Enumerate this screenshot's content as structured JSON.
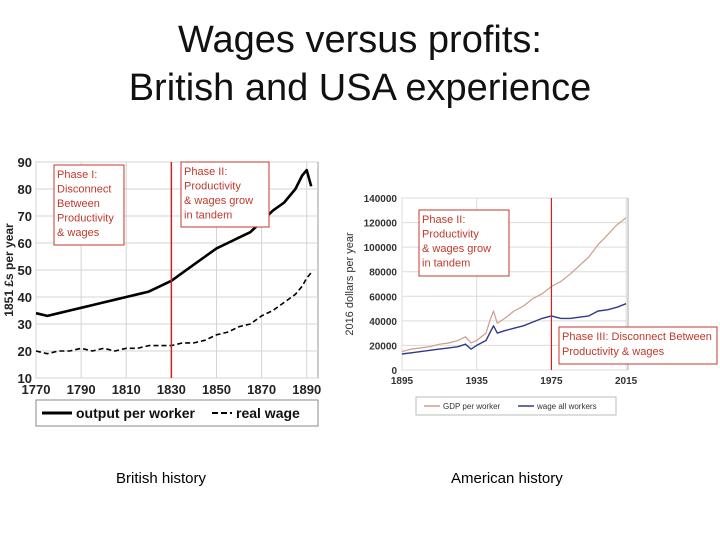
{
  "slide": {
    "title_line1": "Wages versus profits:",
    "title_line2": "British and USA experience",
    "caption_left": "British history",
    "caption_right": "American history"
  },
  "colors": {
    "phase_box": "#c0392b",
    "phase_text": "#c0392b",
    "phase_line": "#cc2222",
    "gdp_line": "#d19a8c",
    "wage_line": "#2e3a8a",
    "black": "#000000"
  },
  "chart_data": [
    {
      "type": "line",
      "title": "",
      "xlabel": "",
      "ylabel": "1851 £s per year",
      "xlim": [
        1770,
        1895
      ],
      "ylim": [
        10,
        90
      ],
      "x_ticks": [
        1770,
        1790,
        1810,
        1830,
        1850,
        1870,
        1890
      ],
      "y_ticks": [
        10,
        20,
        30,
        40,
        50,
        60,
        70,
        80,
        90
      ],
      "grid": true,
      "legend_position": "bottom",
      "series": [
        {
          "name": "output per worker",
          "style": "solid",
          "x": [
            1770,
            1775,
            1780,
            1785,
            1790,
            1795,
            1800,
            1805,
            1810,
            1815,
            1820,
            1825,
            1830,
            1835,
            1840,
            1845,
            1850,
            1855,
            1860,
            1865,
            1870,
            1875,
            1880,
            1885,
            1888,
            1890,
            1892
          ],
          "y": [
            34,
            33,
            34,
            35,
            36,
            37,
            38,
            39,
            40,
            41,
            42,
            44,
            46,
            49,
            52,
            55,
            58,
            60,
            62,
            64,
            68,
            72,
            75,
            80,
            85,
            87,
            81
          ]
        },
        {
          "name": "real wage",
          "style": "dashed",
          "x": [
            1770,
            1775,
            1780,
            1785,
            1790,
            1795,
            1800,
            1805,
            1810,
            1815,
            1820,
            1825,
            1830,
            1835,
            1840,
            1845,
            1850,
            1855,
            1860,
            1865,
            1870,
            1875,
            1880,
            1885,
            1888,
            1890,
            1892
          ],
          "y": [
            20,
            19,
            20,
            20,
            21,
            20,
            21,
            20,
            21,
            21,
            22,
            22,
            22,
            23,
            23,
            24,
            26,
            27,
            29,
            30,
            33,
            35,
            38,
            41,
            44,
            47,
            49
          ]
        }
      ],
      "phase_lines": [
        1830
      ],
      "annotations": [
        {
          "lines": [
            "Phase I:",
            "Disconnect",
            "Between",
            "Productivity",
            "& wages"
          ]
        },
        {
          "lines": [
            "Phase II:",
            "Productivity",
            "& wages grow",
            "in tandem"
          ]
        }
      ]
    },
    {
      "type": "line",
      "title": "",
      "xlabel": "",
      "ylabel": "2016 dollars per year",
      "xlim": [
        1895,
        2016
      ],
      "ylim": [
        0,
        140000
      ],
      "x_ticks": [
        1895,
        1935,
        1975,
        2015
      ],
      "y_ticks": [
        0,
        20000,
        40000,
        60000,
        80000,
        100000,
        120000,
        140000
      ],
      "grid": true,
      "legend_position": "bottom",
      "series": [
        {
          "name": "GDP per worker",
          "x": [
            1895,
            1900,
            1905,
            1910,
            1915,
            1920,
            1925,
            1929,
            1932,
            1935,
            1940,
            1942,
            1944,
            1946,
            1950,
            1955,
            1960,
            1965,
            1970,
            1975,
            1980,
            1985,
            1990,
            1995,
            2000,
            2005,
            2010,
            2015
          ],
          "y": [
            15000,
            17000,
            18000,
            19000,
            21000,
            22000,
            24000,
            27000,
            22000,
            24000,
            30000,
            40000,
            48000,
            38000,
            42000,
            48000,
            52000,
            58000,
            62000,
            68000,
            72000,
            78000,
            85000,
            92000,
            102000,
            110000,
            118000,
            124000
          ]
        },
        {
          "name": "wage all workers",
          "x": [
            1895,
            1900,
            1905,
            1910,
            1915,
            1920,
            1925,
            1929,
            1932,
            1935,
            1940,
            1942,
            1944,
            1946,
            1950,
            1955,
            1960,
            1965,
            1970,
            1975,
            1980,
            1985,
            1990,
            1995,
            2000,
            2005,
            2010,
            2015
          ],
          "y": [
            13000,
            14000,
            15000,
            16000,
            17000,
            18000,
            19000,
            21000,
            17000,
            20000,
            24000,
            30000,
            36000,
            30000,
            32000,
            34000,
            36000,
            39000,
            42000,
            44000,
            42000,
            42000,
            43000,
            44000,
            48000,
            49000,
            51000,
            54000
          ]
        }
      ],
      "phase_lines": [
        1975
      ],
      "annotations": [
        {
          "lines": [
            "Phase II:",
            "Productivity",
            "& wages grow",
            "in tandem"
          ]
        },
        {
          "lines": [
            "Phase III:  Disconnect Between",
            "Productivity & wages"
          ]
        }
      ]
    }
  ]
}
